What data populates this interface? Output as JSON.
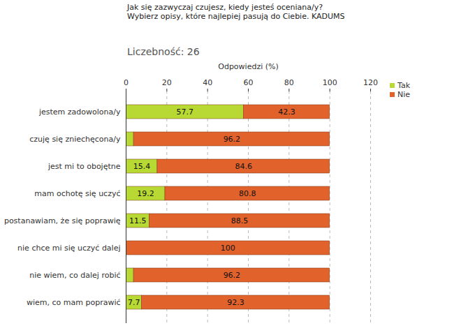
{
  "chart_data": {
    "type": "bar",
    "orientation": "horizontal",
    "stacked": true,
    "title": "Jak się zazwyczaj czujesz, kiedy jesteś oceniana/y?\nWybierz opisy, które najlepiej pasują do Ciebie. KADUMS",
    "subtitle": "Liczebność: 26",
    "x_label": "Odpowiedzi (%)",
    "categories": [
      "jestem zadowolona/y",
      "czuję się zniechęcona/y",
      "jest mi to obojętne",
      "mam ochotę się uczyć",
      "postanawiam, że się poprawię",
      "nie chce mi się uczyć dalej",
      "nie wiem, co dalej robić",
      "wiem, co mam poprawić"
    ],
    "series": [
      {
        "name": "Tak",
        "color": "#b8d934",
        "values": [
          57.7,
          3.8,
          15.4,
          19.2,
          11.5,
          0,
          3.8,
          7.7
        ],
        "value_labels": [
          "57.7",
          null,
          "15.4",
          "19.2",
          "11.5",
          null,
          null,
          "7.7"
        ]
      },
      {
        "name": "Nie",
        "color": "#e2622c",
        "values": [
          42.3,
          96.2,
          84.6,
          80.8,
          88.5,
          100,
          96.2,
          92.3
        ],
        "value_labels": [
          "42.3",
          "96.2",
          "84.6",
          "80.8",
          "88.5",
          "100",
          "96.2",
          "92.3"
        ]
      }
    ],
    "xlim": [
      0,
      120
    ],
    "xticks": [
      0,
      20,
      40,
      60,
      80,
      100,
      120
    ],
    "grid": true,
    "data_labels": true,
    "legend": "top-right"
  }
}
